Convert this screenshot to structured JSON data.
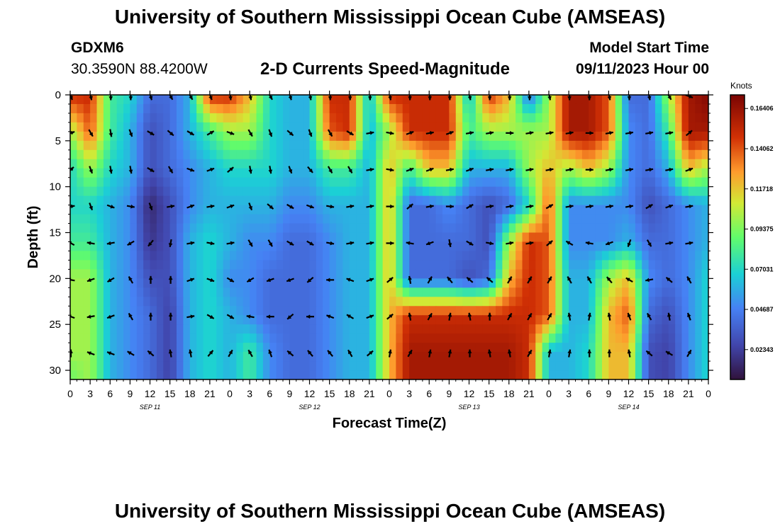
{
  "header": {
    "title": "University of Southern Mississippi Ocean Cube (AMSEAS)",
    "station": "GDXM6",
    "coords": "30.3590N  88.4200W",
    "subtitle": "2-D Currents Speed-Magnitude",
    "model_start_label": "Model Start Time",
    "model_start_value": "09/11/2023 Hour 00"
  },
  "footer": {
    "title": "University of Southern Mississippi Ocean Cube (AMSEAS)"
  },
  "chart_data": {
    "type": "heatmap",
    "title": "2-D Currents Speed-Magnitude",
    "xlabel": "Forecast Time(Z)",
    "ylabel": "Depth (ft)",
    "x_hours": [
      0,
      96
    ],
    "ylim": [
      0,
      31
    ],
    "x_ticks": [
      "0",
      "3",
      "6",
      "9",
      "12",
      "15",
      "18",
      "21",
      "0",
      "3",
      "6",
      "9",
      "12",
      "15",
      "18",
      "21",
      "0",
      "3",
      "6",
      "9",
      "12",
      "15",
      "18",
      "21",
      "0",
      "3",
      "6",
      "9",
      "12",
      "15",
      "18",
      "21",
      "0"
    ],
    "y_ticks": [
      "0",
      "5",
      "10",
      "15",
      "20",
      "25",
      "30"
    ],
    "date_labels": [
      {
        "text": "SEP 11",
        "hour": 12
      },
      {
        "text": "SEP 12",
        "hour": 36
      },
      {
        "text": "SEP 13",
        "hour": 60
      },
      {
        "text": "SEP 14",
        "hour": 84
      }
    ],
    "colorbar": {
      "unit_label": "Knots",
      "min": 0.006,
      "max": 0.172,
      "ticks": [
        "0.16406",
        "0.14062",
        "0.11718",
        "0.09375",
        "0.07031",
        "0.04687",
        "0.02343"
      ],
      "tick_values": [
        0.16406,
        0.14062,
        0.11718,
        0.09375,
        0.07031,
        0.04687,
        0.02343
      ]
    },
    "depth_rows": [
      0,
      4,
      8,
      12,
      16,
      20,
      24,
      28
    ],
    "arrow_hours": [
      0,
      3,
      6,
      9,
      12,
      15,
      18,
      21,
      24,
      27,
      30,
      33,
      36,
      39,
      42,
      45,
      48,
      51,
      54,
      57,
      60,
      63,
      66,
      69,
      72,
      75,
      78,
      81,
      84,
      87,
      90,
      93
    ],
    "speed_control": {
      "depths": [
        0,
        4,
        8,
        12,
        16,
        20,
        24,
        28,
        31
      ],
      "hours": [
        0,
        3,
        6,
        9,
        12,
        15,
        18,
        21,
        24,
        27,
        30,
        33,
        36,
        39,
        42,
        45,
        48,
        51,
        54,
        57,
        60,
        63,
        66,
        69,
        72,
        75,
        78,
        81,
        84,
        87,
        90,
        93,
        96
      ],
      "values": [
        [
          0.15,
          0.15,
          0.08,
          0.07,
          0.04,
          0.04,
          0.06,
          0.15,
          0.15,
          0.12,
          0.07,
          0.06,
          0.06,
          0.15,
          0.15,
          0.06,
          0.15,
          0.15,
          0.15,
          0.15,
          0.06,
          0.15,
          0.12,
          0.04,
          0.1,
          0.16,
          0.16,
          0.14,
          0.04,
          0.04,
          0.1,
          0.16,
          0.17
        ],
        [
          0.1,
          0.14,
          0.08,
          0.06,
          0.03,
          0.04,
          0.06,
          0.08,
          0.1,
          0.1,
          0.07,
          0.06,
          0.06,
          0.14,
          0.15,
          0.06,
          0.1,
          0.15,
          0.15,
          0.15,
          0.08,
          0.1,
          0.1,
          0.1,
          0.1,
          0.16,
          0.16,
          0.14,
          0.05,
          0.04,
          0.08,
          0.16,
          0.16
        ],
        [
          0.07,
          0.1,
          0.07,
          0.06,
          0.03,
          0.04,
          0.05,
          0.06,
          0.07,
          0.07,
          0.07,
          0.06,
          0.06,
          0.08,
          0.08,
          0.06,
          0.12,
          0.08,
          0.12,
          0.12,
          0.06,
          0.06,
          0.06,
          0.1,
          0.12,
          0.1,
          0.12,
          0.1,
          0.05,
          0.04,
          0.06,
          0.12,
          0.1
        ],
        [
          0.07,
          0.07,
          0.06,
          0.05,
          0.015,
          0.03,
          0.05,
          0.06,
          0.06,
          0.06,
          0.06,
          0.05,
          0.05,
          0.06,
          0.06,
          0.06,
          0.12,
          0.04,
          0.04,
          0.05,
          0.04,
          0.03,
          0.04,
          0.07,
          0.14,
          0.05,
          0.05,
          0.05,
          0.05,
          0.03,
          0.04,
          0.05,
          0.06
        ],
        [
          0.08,
          0.08,
          0.06,
          0.05,
          0.02,
          0.03,
          0.06,
          0.07,
          0.06,
          0.05,
          0.05,
          0.04,
          0.04,
          0.05,
          0.06,
          0.06,
          0.12,
          0.04,
          0.04,
          0.04,
          0.04,
          0.03,
          0.1,
          0.15,
          0.14,
          0.05,
          0.05,
          0.05,
          0.06,
          0.04,
          0.04,
          0.05,
          0.06
        ],
        [
          0.1,
          0.1,
          0.06,
          0.05,
          0.03,
          0.03,
          0.06,
          0.07,
          0.05,
          0.05,
          0.04,
          0.04,
          0.04,
          0.05,
          0.06,
          0.06,
          0.12,
          0.04,
          0.04,
          0.04,
          0.03,
          0.04,
          0.12,
          0.15,
          0.14,
          0.06,
          0.06,
          0.1,
          0.12,
          0.05,
          0.04,
          0.05,
          0.07
        ],
        [
          0.1,
          0.1,
          0.06,
          0.05,
          0.04,
          0.025,
          0.06,
          0.07,
          0.06,
          0.05,
          0.04,
          0.04,
          0.04,
          0.05,
          0.06,
          0.06,
          0.12,
          0.15,
          0.15,
          0.15,
          0.15,
          0.15,
          0.15,
          0.15,
          0.14,
          0.06,
          0.06,
          0.12,
          0.14,
          0.04,
          0.03,
          0.05,
          0.07
        ],
        [
          0.1,
          0.1,
          0.06,
          0.05,
          0.04,
          0.025,
          0.06,
          0.07,
          0.06,
          0.08,
          0.05,
          0.04,
          0.04,
          0.05,
          0.06,
          0.06,
          0.12,
          0.16,
          0.16,
          0.16,
          0.16,
          0.16,
          0.16,
          0.15,
          0.06,
          0.06,
          0.07,
          0.12,
          0.12,
          0.03,
          0.025,
          0.05,
          0.07
        ],
        [
          0.09,
          0.1,
          0.06,
          0.05,
          0.04,
          0.025,
          0.06,
          0.07,
          0.06,
          0.08,
          0.05,
          0.04,
          0.04,
          0.05,
          0.06,
          0.06,
          0.12,
          0.16,
          0.16,
          0.16,
          0.16,
          0.16,
          0.16,
          0.15,
          0.06,
          0.06,
          0.07,
          0.12,
          0.12,
          0.03,
          0.025,
          0.05,
          0.07
        ]
      ]
    },
    "direction_control": {
      "note": "arrow direction in degrees, 0 = east, 90 = north (up), 270 = south (down)",
      "values": [
        [
          290,
          280,
          270,
          270,
          285,
          300,
          300,
          290,
          275,
          280,
          300,
          285,
          280,
          270,
          270,
          270,
          280,
          270,
          270,
          270,
          280,
          270,
          270,
          270,
          280,
          270,
          270,
          280,
          270,
          280,
          300,
          340
        ],
        [
          20,
          300,
          280,
          290,
          330,
          320,
          330,
          30,
          340,
          300,
          290,
          320,
          290,
          300,
          330,
          10,
          350,
          20,
          10,
          20,
          10,
          10,
          0,
          10,
          10,
          10,
          0,
          10,
          10,
          10,
          10,
          40
        ],
        [
          45,
          290,
          280,
          280,
          330,
          300,
          340,
          20,
          40,
          280,
          280,
          290,
          310,
          300,
          300,
          10,
          350,
          20,
          20,
          10,
          20,
          10,
          10,
          10,
          10,
          10,
          0,
          10,
          10,
          10,
          10,
          20
        ],
        [
          10,
          290,
          340,
          350,
          290,
          10,
          20,
          10,
          20,
          290,
          320,
          330,
          340,
          350,
          10,
          10,
          0,
          40,
          10,
          0,
          30,
          10,
          10,
          10,
          30,
          10,
          10,
          10,
          10,
          30,
          20,
          10
        ],
        [
          150,
          170,
          190,
          210,
          230,
          260,
          10,
          350,
          10,
          300,
          300,
          330,
          330,
          350,
          10,
          10,
          0,
          170,
          200,
          280,
          330,
          350,
          10,
          10,
          40,
          150,
          170,
          200,
          250,
          300,
          10,
          10
        ],
        [
          170,
          200,
          210,
          120,
          90,
          90,
          20,
          340,
          330,
          210,
          200,
          200,
          220,
          180,
          160,
          20,
          40,
          100,
          60,
          130,
          140,
          140,
          60,
          60,
          60,
          120,
          120,
          130,
          150,
          190,
          140,
          120
        ],
        [
          160,
          190,
          200,
          120,
          90,
          90,
          10,
          330,
          330,
          170,
          180,
          220,
          180,
          160,
          150,
          20,
          40,
          100,
          60,
          80,
          100,
          90,
          60,
          60,
          60,
          100,
          80,
          100,
          110,
          120,
          100,
          110
        ],
        [
          90,
          160,
          160,
          150,
          140,
          100,
          100,
          50,
          60,
          120,
          110,
          140,
          130,
          130,
          120,
          40,
          80,
          60,
          80,
          80,
          90,
          100,
          100,
          60,
          80,
          80,
          90,
          90,
          100,
          140,
          150,
          60
        ]
      ]
    }
  }
}
